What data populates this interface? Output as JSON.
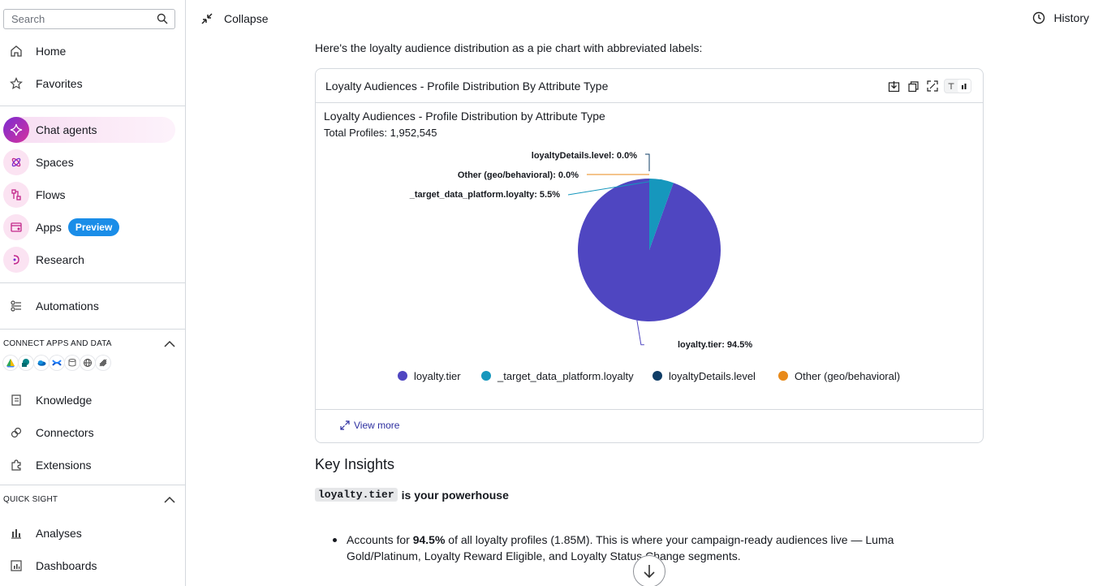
{
  "sidebar": {
    "search_placeholder": "Search",
    "nav_top": [
      {
        "label": "Home",
        "icon": "home-icon"
      },
      {
        "label": "Favorites",
        "icon": "star-icon"
      }
    ],
    "nav_main": [
      {
        "label": "Chat agents",
        "icon": "sparkle-icon",
        "active": true
      },
      {
        "label": "Spaces",
        "icon": "spaces-icon"
      },
      {
        "label": "Flows",
        "icon": "flows-icon"
      },
      {
        "label": "Apps",
        "icon": "apps-icon",
        "badge": "Preview"
      },
      {
        "label": "Research",
        "icon": "research-icon"
      }
    ],
    "automations": "Automations",
    "connect_section": {
      "title": "CONNECT APPS AND DATA",
      "items": [
        {
          "label": "Knowledge",
          "icon": "knowledge-icon"
        },
        {
          "label": "Connectors",
          "icon": "connectors-icon"
        },
        {
          "label": "Extensions",
          "icon": "extensions-icon"
        }
      ]
    },
    "quicksight_section": {
      "title": "QUICK SIGHT",
      "items": [
        {
          "label": "Analyses",
          "icon": "analyses-icon"
        },
        {
          "label": "Dashboards",
          "icon": "dashboards-icon"
        }
      ]
    }
  },
  "topbar": {
    "collapse_label": "Collapse",
    "history_label": "History"
  },
  "main": {
    "intro": "Here's the loyalty audience distribution as a pie chart with abbreviated labels:",
    "card": {
      "header_title": "Loyalty Audiences - Profile Distribution By Attribute Type",
      "view_more": "View more"
    },
    "insights_heading": "Key Insights",
    "powerhouse_code": "loyalty.tier",
    "powerhouse_text": "is your powerhouse",
    "bullet_pre": "Accounts for ",
    "bullet_bold": "94.5%",
    "bullet_post": " of all loyalty profiles (1.85M). This is where your campaign-ready audiences live — Luma Gold/Platinum, Loyalty Reward Eligible, and Loyalty Status Change segments."
  },
  "chart_data": {
    "type": "pie",
    "title": "Loyalty Audiences - Profile Distribution by Attribute Type",
    "subtitle": "Total Profiles: 1,952,545",
    "slices": [
      {
        "name": "loyalty.tier",
        "value": 94.5,
        "label": "loyalty.tier: 94.5%",
        "color": "#4f46c1"
      },
      {
        "name": "_target_data_platform.loyalty",
        "value": 5.5,
        "label": "_target_data_platform.loyalty: 5.5%",
        "color": "#1697bd"
      },
      {
        "name": "loyaltyDetails.level",
        "value": 0.0,
        "label": "loyaltyDetails.level: 0.0%",
        "color": "#0f3d66"
      },
      {
        "name": "Other (geo/behavioral)",
        "value": 0.0,
        "label": "Other (geo/behavioral): 0.0%",
        "color": "#e88a1a"
      }
    ],
    "legend": [
      "loyalty.tier",
      "_target_data_platform.loyalty",
      "loyaltyDetails.level",
      "Other (geo/behavioral)"
    ],
    "legend_position": "bottom"
  }
}
